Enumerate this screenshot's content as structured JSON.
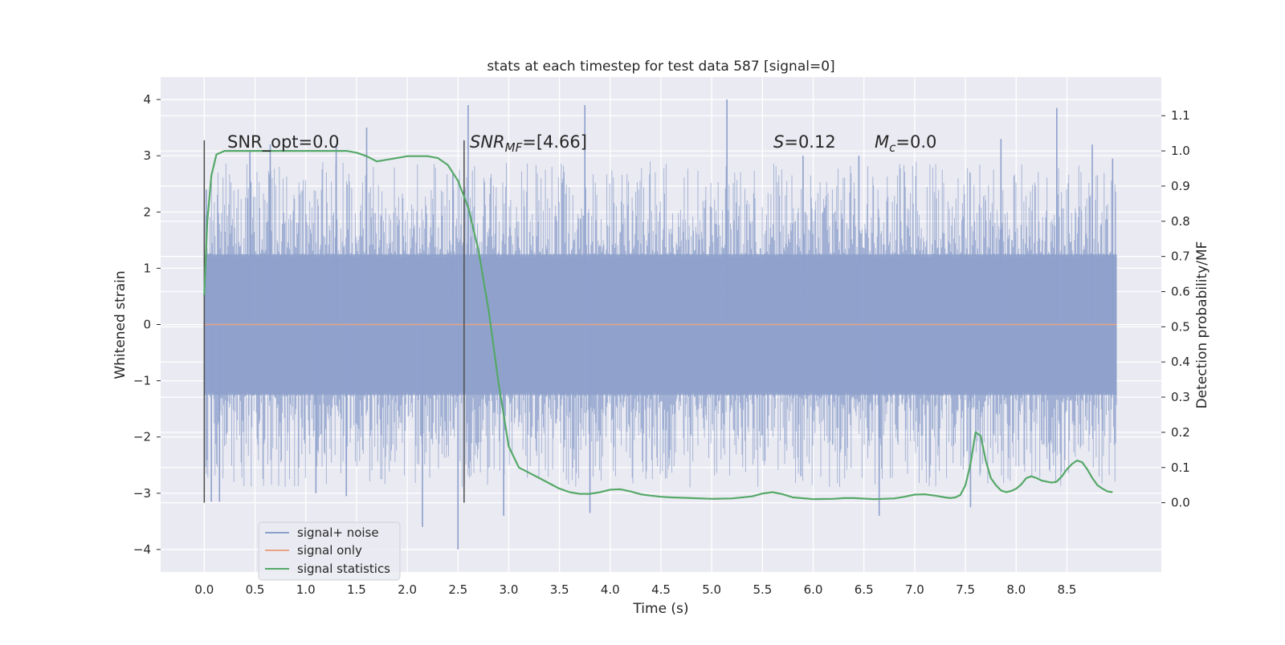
{
  "chart_data": {
    "type": "line",
    "title": "stats at each timestep for test data 587 [signal=0]",
    "xlabel": "Time (s)",
    "ylabel": "Whitened strain",
    "y2label": "Detection probability/MF",
    "xlim": [
      -0.43,
      9.43
    ],
    "ylim": [
      -4.4,
      4.4
    ],
    "y2lim": [
      -0.197,
      1.21
    ],
    "x_ticks": [
      "0.0",
      "0.5",
      "1.0",
      "1.5",
      "2.0",
      "2.5",
      "3.0",
      "3.5",
      "4.0",
      "4.5",
      "5.0",
      "5.5",
      "6.0",
      "6.5",
      "7.0",
      "7.5",
      "8.0",
      "8.5"
    ],
    "y_ticks": [
      "4",
      "3",
      "2",
      "1",
      "0",
      "−1",
      "−2",
      "−3",
      "−4"
    ],
    "y2_ticks": [
      "1.1",
      "1.0",
      "0.9",
      "0.8",
      "0.7",
      "0.6",
      "0.5",
      "0.4",
      "0.3",
      "0.2",
      "0.1",
      "0.0"
    ],
    "grid": true,
    "legend_placement": "lower-left",
    "annotations": {
      "snr_opt": "SNR_opt=0.0",
      "snr_mf_main": "SNR",
      "snr_mf_sub": "MF",
      "snr_mf_value": "=[4.66]",
      "s_main": "S",
      "s_value": "=0.12",
      "mc_main": "M",
      "mc_sub": "c",
      "mc_value": "=0.0"
    },
    "vlines_x": [
      0.0,
      2.56
    ],
    "series": [
      {
        "name": "signal+ noise",
        "color": "#8da0cb",
        "band_range_s": [
          0.0,
          8.99
        ],
        "spike_peaks": [
          {
            "x": 0.02,
            "y": 2.4
          },
          {
            "x": 0.07,
            "y": -3.15
          },
          {
            "x": 0.15,
            "y": -3.15
          },
          {
            "x": 0.45,
            "y": 3.1
          },
          {
            "x": 0.65,
            "y": 3.2
          },
          {
            "x": 1.1,
            "y": -3.0
          },
          {
            "x": 1.3,
            "y": 3.2
          },
          {
            "x": 1.4,
            "y": -3.05
          },
          {
            "x": 1.6,
            "y": 3.5
          },
          {
            "x": 2.15,
            "y": -3.6
          },
          {
            "x": 2.45,
            "y": 2.7
          },
          {
            "x": 2.5,
            "y": -4.0
          },
          {
            "x": 2.6,
            "y": 3.9
          },
          {
            "x": 2.95,
            "y": -3.4
          },
          {
            "x": 3.75,
            "y": 3.9
          },
          {
            "x": 3.8,
            "y": -3.35
          },
          {
            "x": 5.15,
            "y": 4.0
          },
          {
            "x": 5.9,
            "y": 3.0
          },
          {
            "x": 6.45,
            "y": 3.0
          },
          {
            "x": 6.65,
            "y": -3.4
          },
          {
            "x": 7.55,
            "y": -3.25
          },
          {
            "x": 7.85,
            "y": 3.3
          },
          {
            "x": 8.4,
            "y": 3.85
          },
          {
            "x": 8.75,
            "y": 3.2
          },
          {
            "x": 8.95,
            "y": 2.95
          }
        ]
      },
      {
        "name": "signal only",
        "color": "#e8a385",
        "x": [
          0.0,
          8.99
        ],
        "y": [
          0.0,
          0.0
        ]
      },
      {
        "name": "signal statistics",
        "color": "#55a868",
        "axis": "right",
        "x": [
          0.0,
          0.03,
          0.07,
          0.12,
          0.2,
          0.3,
          0.5,
          0.8,
          1.0,
          1.2,
          1.4,
          1.5,
          1.6,
          1.7,
          1.8,
          1.9,
          2.0,
          2.1,
          2.2,
          2.3,
          2.4,
          2.5,
          2.6,
          2.7,
          2.8,
          2.9,
          3.0,
          3.1,
          3.2,
          3.3,
          3.4,
          3.5,
          3.6,
          3.7,
          3.8,
          3.9,
          4.0,
          4.1,
          4.2,
          4.3,
          4.4,
          4.5,
          4.6,
          4.8,
          5.0,
          5.2,
          5.4,
          5.5,
          5.6,
          5.7,
          5.8,
          6.0,
          6.2,
          6.3,
          6.4,
          6.6,
          6.8,
          6.9,
          7.0,
          7.1,
          7.2,
          7.3,
          7.35,
          7.4,
          7.45,
          7.5,
          7.55,
          7.6,
          7.65,
          7.7,
          7.75,
          7.8,
          7.85,
          7.9,
          7.95,
          8.0,
          8.05,
          8.1,
          8.15,
          8.2,
          8.25,
          8.3,
          8.35,
          8.4,
          8.45,
          8.5,
          8.55,
          8.6,
          8.65,
          8.7,
          8.75,
          8.8,
          8.85,
          8.9,
          8.95
        ],
        "y": [
          0.59,
          0.8,
          0.93,
          0.99,
          1.0,
          1.0,
          1.0,
          1.0,
          1.0,
          1.0,
          1.0,
          0.995,
          0.985,
          0.97,
          0.975,
          0.98,
          0.985,
          0.985,
          0.985,
          0.98,
          0.96,
          0.915,
          0.84,
          0.72,
          0.55,
          0.34,
          0.16,
          0.1,
          0.085,
          0.07,
          0.055,
          0.04,
          0.03,
          0.025,
          0.025,
          0.03,
          0.037,
          0.038,
          0.032,
          0.024,
          0.02,
          0.017,
          0.015,
          0.013,
          0.011,
          0.012,
          0.018,
          0.026,
          0.03,
          0.024,
          0.015,
          0.01,
          0.011,
          0.013,
          0.013,
          0.01,
          0.012,
          0.017,
          0.023,
          0.024,
          0.02,
          0.015,
          0.013,
          0.015,
          0.022,
          0.05,
          0.11,
          0.2,
          0.19,
          0.12,
          0.07,
          0.05,
          0.035,
          0.03,
          0.033,
          0.04,
          0.052,
          0.07,
          0.075,
          0.07,
          0.063,
          0.06,
          0.057,
          0.06,
          0.075,
          0.095,
          0.11,
          0.12,
          0.115,
          0.095,
          0.07,
          0.05,
          0.04,
          0.032,
          0.03
        ]
      }
    ]
  }
}
